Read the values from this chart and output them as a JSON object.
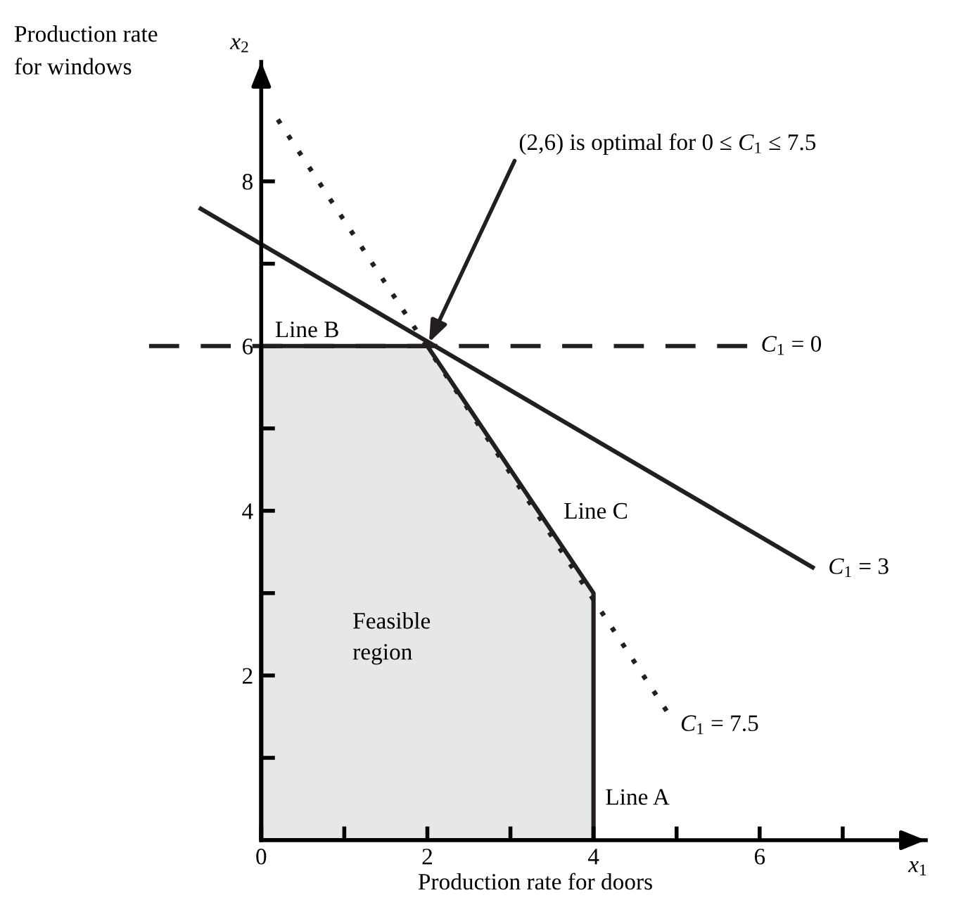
{
  "chart_data": {
    "type": "line",
    "xlabel": "Production rate for doors",
    "ylabel": "Production rate\nfor windows",
    "xlim": [
      -1.4,
      8.0
    ],
    "ylim": [
      0,
      9.45
    ],
    "xticks": [
      0,
      {
        "value": 1,
        "label": null
      },
      2,
      {
        "value": 3,
        "label": null
      },
      4,
      {
        "value": 5,
        "label": null
      },
      6,
      {
        "value": 7,
        "label": null
      }
    ],
    "yticks": [
      {
        "value": 1,
        "label": null
      },
      2,
      {
        "value": 3,
        "label": null
      },
      4,
      {
        "value": 5,
        "label": null
      },
      6,
      {
        "value": 7,
        "label": null
      },
      8
    ],
    "series": [
      {
        "type": "area",
        "color": "#e6e7e9",
        "x": [
          0,
          2,
          4,
          4
        ],
        "values": [
          6,
          6,
          3,
          0
        ]
      },
      {
        "name": "C$_{1}$ = 0",
        "color": "#231f20",
        "line_style": "dashed",
        "x": [
          -1.35,
          5.85
        ],
        "values": [
          6,
          6
        ]
      },
      {
        "name": "C$_{1}$ = 3",
        "color": "#231f20",
        "line_style": "solid",
        "x": [
          -0.75,
          6.66
        ],
        "values": [
          7.68,
          3.3
        ]
      },
      {
        "name": "C$_{1}$ = 7.5",
        "color": "#231f20",
        "line_style": "dotted",
        "x": [
          0.2,
          4.88
        ],
        "values": [
          8.75,
          1.57
        ]
      }
    ],
    "annotations": [
      {
        "text": "(2,6) is optimal for 0 ≤ C$_{1}$ ≤ 7.5",
        "x": 2,
        "y": 6
      },
      "Feasible\nregion",
      "x$_{2}$",
      "x$_{1}$",
      {
        "text": "Line B",
        "x": 0.6,
        "y": 6
      },
      {
        "text": "Line C",
        "x": 3.5,
        "y": 3.75
      },
      {
        "text": "Line A",
        "x": 4,
        "y": 0.5
      }
    ],
    "grid": false,
    "legend": false,
    "marker": "none"
  }
}
